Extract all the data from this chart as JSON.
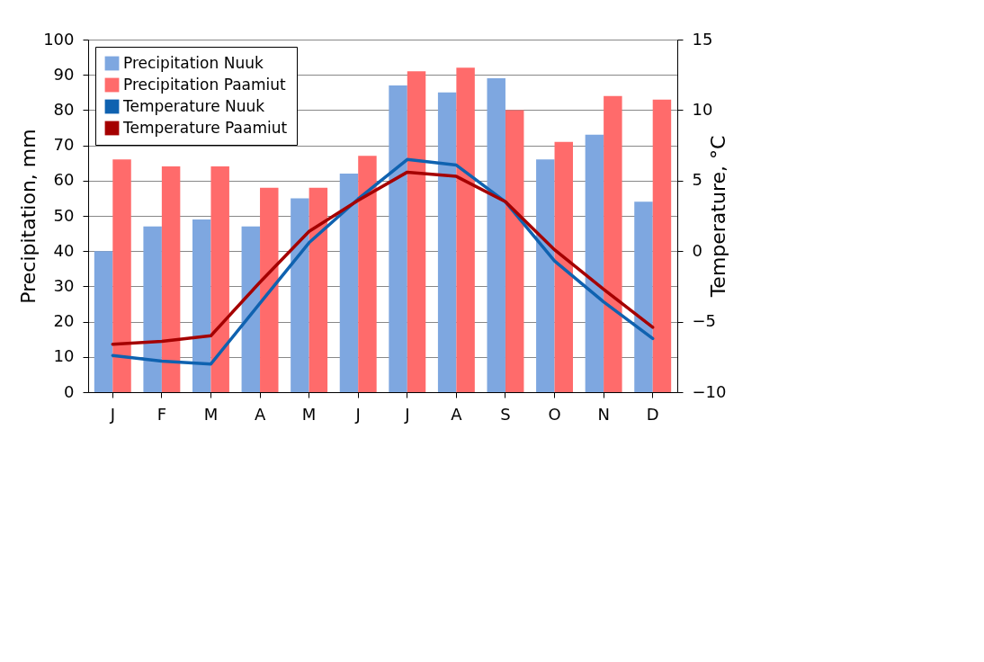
{
  "chart_data": {
    "type": "bar",
    "xlabel": null,
    "ylabel": "Precipitation, mm",
    "y2label": "Temperature, °C",
    "categories": [
      "J",
      "F",
      "M",
      "A",
      "M",
      "J",
      "J",
      "A",
      "S",
      "O",
      "N",
      "D"
    ],
    "series": [
      {
        "name": "Precipitation Nuuk",
        "color": "#7ea7e0",
        "values": [
          40,
          47,
          49,
          47,
          55,
          62,
          87,
          85,
          89,
          66,
          73,
          54
        ]
      },
      {
        "name": "Precipitation Paamiut",
        "color": "#ff6b6b",
        "values": [
          66,
          64,
          64,
          58,
          58,
          67,
          91,
          92,
          80,
          71,
          84,
          83
        ]
      },
      {
        "name": "Temperature Nuuk",
        "type": "line",
        "axis": "y2",
        "color": "#0f62b0",
        "values": [
          -7.4,
          -7.8,
          -8.0,
          -3.7,
          0.6,
          3.7,
          6.5,
          6.1,
          3.5,
          -0.7,
          -3.6,
          -6.2
        ]
      },
      {
        "name": "Temperature Paamiut",
        "type": "line",
        "axis": "y2",
        "color": "#a50000",
        "values": [
          -6.6,
          -6.4,
          -6.0,
          -2.2,
          1.4,
          3.6,
          5.6,
          5.3,
          3.5,
          0.1,
          -2.7,
          -5.4
        ]
      }
    ],
    "ylim": [
      0,
      100
    ],
    "yticks": [
      0,
      10,
      20,
      30,
      40,
      50,
      60,
      70,
      80,
      90,
      100
    ],
    "y2lim": [
      -10,
      15
    ],
    "y2ticks": [
      -10,
      -5,
      0,
      5,
      10,
      15
    ],
    "grid": "y",
    "legend": "top left",
    "marker": "none",
    "line_style": "solid"
  }
}
